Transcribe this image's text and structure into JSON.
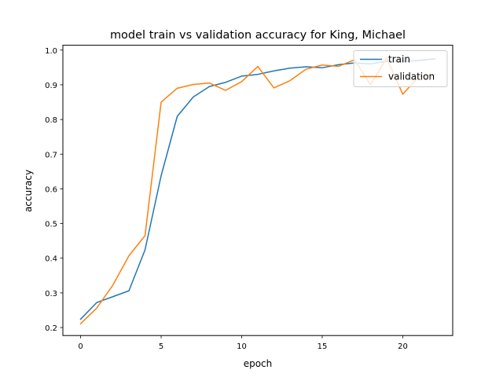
{
  "chart_data": {
    "type": "line",
    "title": "model train vs validation accuracy for King, Michael",
    "xlabel": "epoch",
    "ylabel": "accuracy",
    "xlim": [
      -1.1,
      23.1
    ],
    "ylim": [
      0.177,
      1.014
    ],
    "xticks": [
      0,
      5,
      10,
      15,
      20
    ],
    "yticks": [
      0.2,
      0.3,
      0.4,
      0.5,
      0.6,
      0.7,
      0.8,
      0.9,
      1.0
    ],
    "ytick_labels": [
      "0.2",
      "0.3",
      "0.4",
      "0.5",
      "0.6",
      "0.7",
      "0.8",
      "0.9",
      "1.0"
    ],
    "grid": false,
    "legend_position": "top-right",
    "x": [
      0,
      1,
      2,
      3,
      4,
      5,
      6,
      7,
      8,
      9,
      10,
      11,
      12,
      13,
      14,
      15,
      16,
      17,
      18,
      19,
      20,
      21,
      22
    ],
    "series": [
      {
        "name": "train",
        "color": "#1f77b4",
        "values": [
          0.224,
          0.272,
          0.289,
          0.306,
          0.424,
          0.638,
          0.809,
          0.865,
          0.895,
          0.907,
          0.925,
          0.93,
          0.94,
          0.948,
          0.952,
          0.949,
          0.958,
          0.963,
          0.96,
          0.968,
          0.968,
          0.97,
          0.975
        ]
      },
      {
        "name": "validation",
        "color": "#ff7f0e",
        "values": [
          0.211,
          0.256,
          0.322,
          0.407,
          0.465,
          0.85,
          0.89,
          0.901,
          0.905,
          0.884,
          0.909,
          0.953,
          0.891,
          0.912,
          0.945,
          0.957,
          0.953,
          0.972,
          0.9,
          0.977,
          0.873,
          0.923,
          0.93
        ]
      }
    ]
  }
}
